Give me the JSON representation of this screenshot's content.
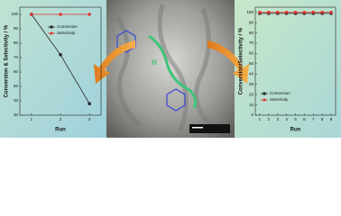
{
  "chart_data": [
    {
      "type": "line",
      "x_label": "Run",
      "y_label": "Conversion & Selectivity / %",
      "x": [
        1,
        2,
        3
      ],
      "xlim": [
        0.6,
        3.4
      ],
      "xticks": [
        1,
        2,
        3
      ],
      "ylim": [
        30,
        105
      ],
      "yticks": [
        30,
        40,
        50,
        60,
        70,
        80,
        90,
        100
      ],
      "legend": "upper center",
      "series": [
        {
          "name": "Conversion",
          "color": "#222222",
          "marker": "square",
          "values": [
            100,
            72,
            38
          ]
        },
        {
          "name": "Selectivity",
          "color": "#e0302a",
          "marker": "circle",
          "values": [
            100,
            100,
            100
          ]
        }
      ]
    },
    {
      "type": "line",
      "x_label": "Run",
      "y_label": "Conversion/Selectivity / %",
      "x": [
        1,
        2,
        3,
        4,
        5,
        6,
        7,
        8,
        9
      ],
      "xlim": [
        0.5,
        9.5
      ],
      "xticks": [
        1,
        2,
        3,
        4,
        5,
        6,
        7,
        8,
        9
      ],
      "ylim": [
        0,
        105
      ],
      "yticks": [
        0,
        10,
        20,
        30,
        40,
        50,
        60,
        70,
        80,
        90,
        100
      ],
      "legend": "lower left",
      "series": [
        {
          "name": "Conversion",
          "color": "#222222",
          "marker": "square",
          "values": [
            99,
            99,
            99,
            99,
            99,
            99,
            99,
            99,
            99
          ]
        },
        {
          "name": "Selectivity",
          "color": "#e0302a",
          "marker": "circle",
          "values": [
            100,
            100,
            100,
            100,
            100,
            100,
            100,
            100,
            100
          ]
        }
      ]
    }
  ],
  "center_image": {
    "label": "H"
  }
}
